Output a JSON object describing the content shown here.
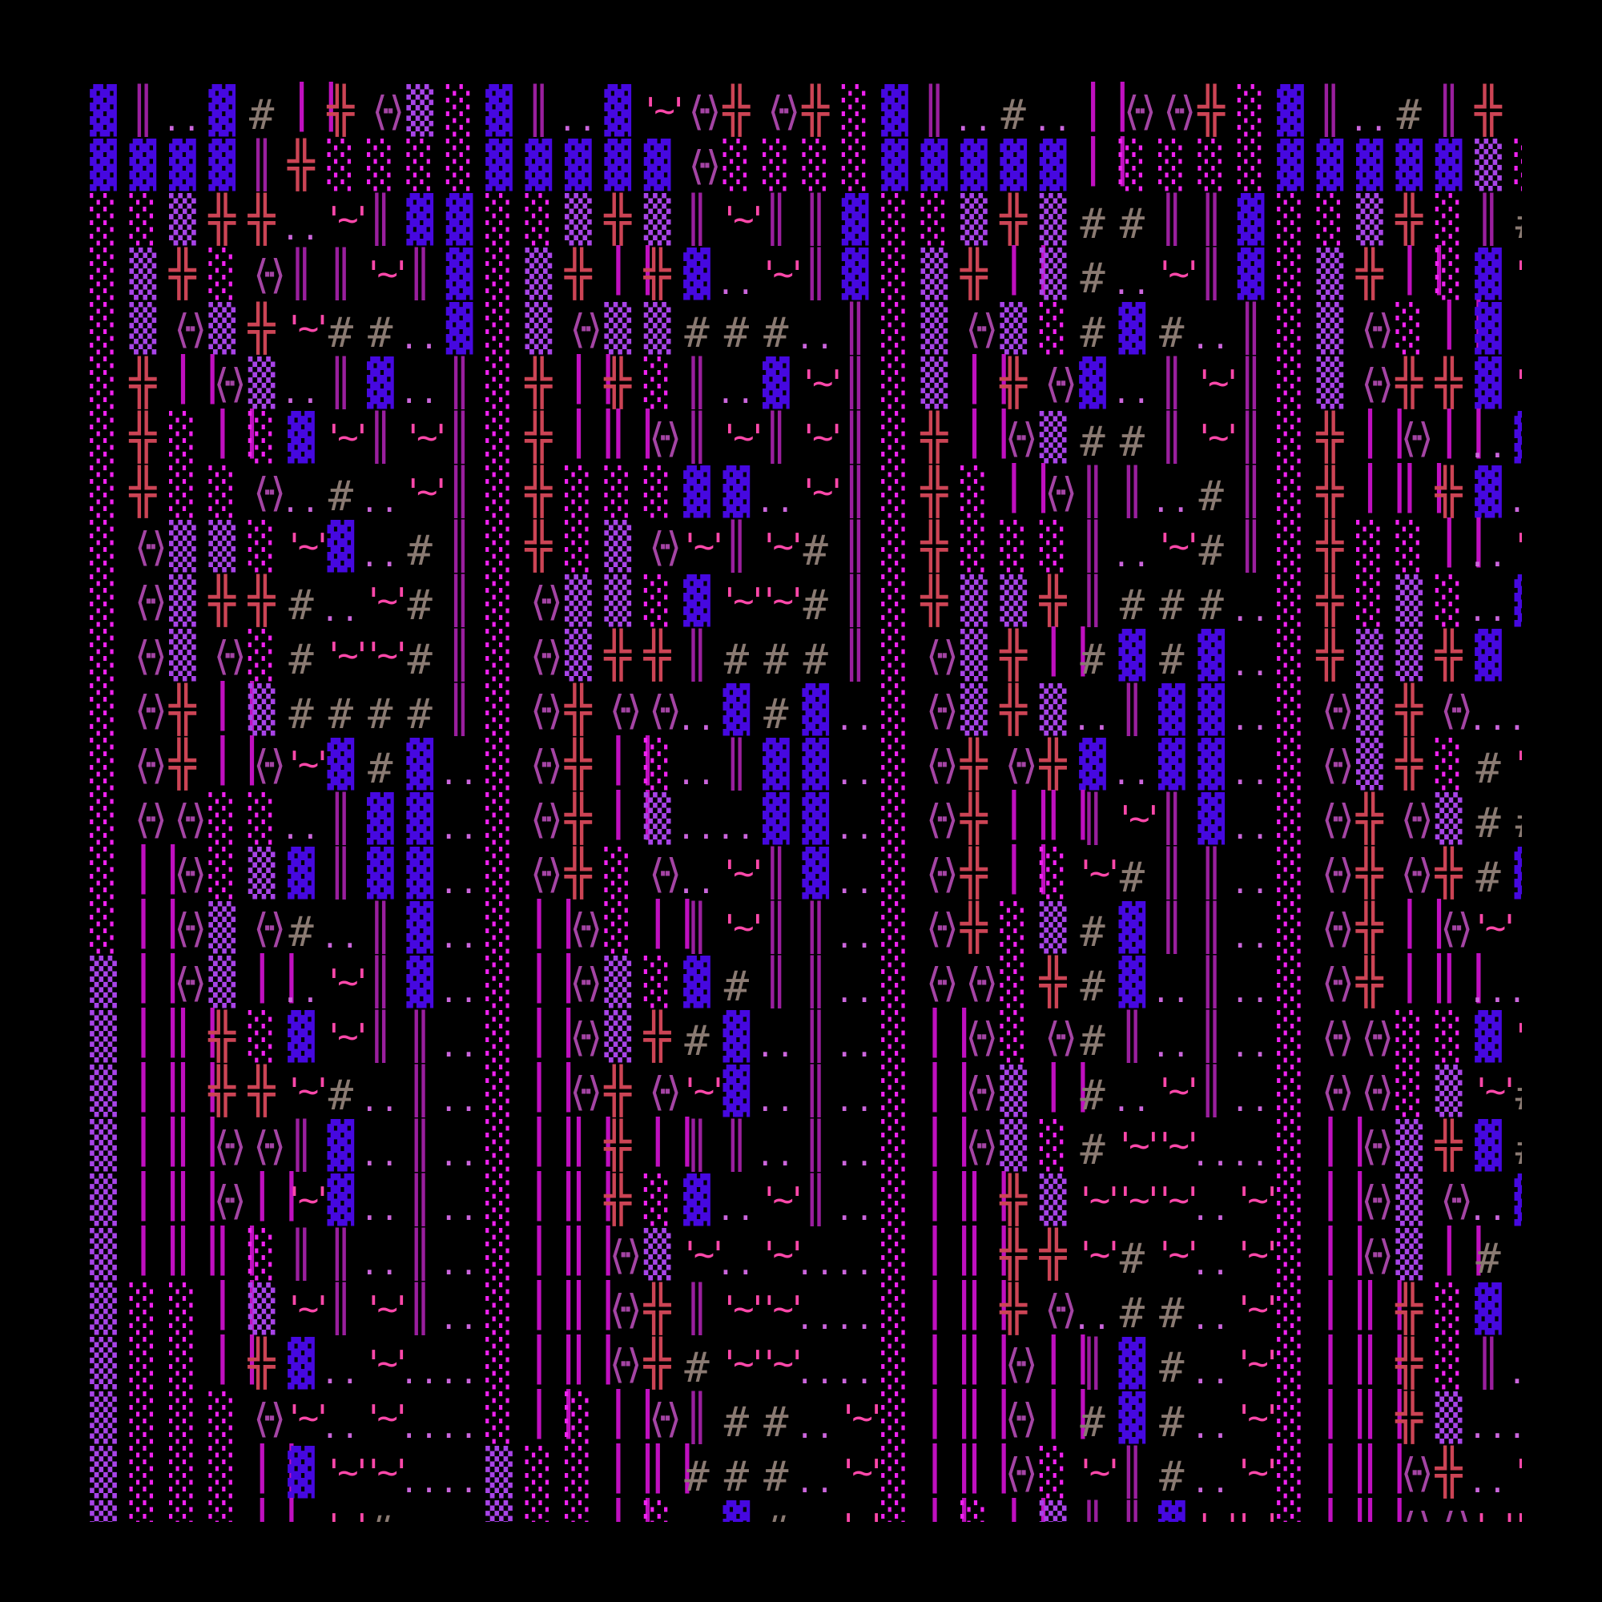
{
  "background": "#000000",
  "palette": {
    "▓": "#4608e0",
    "║": "#9a1f9e",
    "..": "#cc66dd",
    "#": "#8a7a72",
    "| |": "#c010c0",
    "╬": "#cc4455",
    "⟨··⟩": "#a444a4",
    "▒": "#a844e8",
    "░": "#f022f0",
    "'~'": "#ff48aa"
  },
  "rows": [
    [
      "▓",
      "║",
      "..",
      "▓",
      "#",
      "| |",
      "╬",
      "⟨··⟩",
      "▒",
      "░",
      "▓",
      "║",
      "..",
      "▓",
      "'~'",
      "⟨··⟩",
      "╬",
      "⟨··⟩",
      "╬",
      "░",
      "▓",
      "║",
      "..",
      "#",
      "..",
      "| |",
      "⟨··⟩",
      "⟨··⟩",
      "╬",
      "░",
      "▓",
      "║",
      "..",
      "#",
      "║",
      "╬",
      "⟨··⟩"
    ],
    [
      "▓",
      "▓",
      "▓",
      "▓",
      "║",
      "╬",
      "░",
      "░",
      "░",
      "░",
      "▓",
      "▓",
      "▓",
      "▓",
      "▓",
      "⟨··⟩",
      "░",
      "░",
      "░",
      "░",
      "▓",
      "▓",
      "▓",
      "▓",
      "▓",
      "| |",
      "░",
      "░",
      "░",
      "░",
      "▓",
      "▓",
      "▓",
      "▓",
      "▓",
      "▒",
      "░"
    ],
    [
      "░",
      "░",
      "▒",
      "╬",
      "╬",
      "..",
      "'~'",
      "║",
      "▓",
      "▓",
      "░",
      "░",
      "▒",
      "╬",
      "▒",
      "║",
      "'~'",
      "║",
      "║",
      "▓",
      "░",
      "░",
      "▒",
      "╬",
      "▒",
      "#",
      "#",
      "║",
      "║",
      "▓",
      "░",
      "░",
      "▒",
      "╬",
      "░",
      "║",
      "#"
    ],
    [
      "░",
      "▒",
      "╬",
      "░",
      "⟨··⟩",
      "║",
      "║",
      "'~'",
      "║",
      "▓",
      "░",
      "▒",
      "╬",
      "| |",
      "╬",
      "▓",
      "..",
      "'~'",
      "║",
      "▓",
      "░",
      "▒",
      "╬",
      "| |",
      "▒",
      "#",
      "..",
      "'~'",
      "║",
      "▓",
      "░",
      "▒",
      "╬",
      "| |",
      "░",
      "▓",
      "'~'"
    ],
    [
      "░",
      "▒",
      "⟨··⟩",
      "▒",
      "╬",
      "'~'",
      "#",
      "#",
      "..",
      "▓",
      "░",
      "▒",
      "⟨··⟩",
      "▒",
      "▒",
      "#",
      "#",
      "#",
      "..",
      "║",
      "░",
      "▒",
      "⟨··⟩",
      "▒",
      "░",
      "#",
      "▓",
      "#",
      "..",
      "║",
      "░",
      "▒",
      "⟨··⟩",
      "░",
      "| |",
      "▓",
      ""
    ],
    [
      "░",
      "╬",
      "| |",
      "⟨··⟩",
      "▒",
      "..",
      "║",
      "▓",
      "..",
      "║",
      "░",
      "╬",
      "| |",
      "╬",
      "░",
      "║",
      "..",
      "▓",
      "'~'",
      "║",
      "░",
      "▒",
      "| |",
      "╬",
      "⟨··⟩",
      "▓",
      "..",
      "║",
      "'~'",
      "║",
      "░",
      "▒",
      "⟨··⟩",
      "╬",
      "╬",
      "▓",
      "'~'"
    ],
    [
      "░",
      "╬",
      "░",
      "| |",
      "░",
      "▓",
      "'~'",
      "║",
      "'~'",
      "║",
      "░",
      "╬",
      "| |",
      "| |",
      "⟨··⟩",
      "║",
      "'~'",
      "║",
      "'~'",
      "║",
      "░",
      "╬",
      "| |",
      "⟨··⟩",
      "▒",
      "#",
      "#",
      "║",
      "'~'",
      "║",
      "░",
      "╬",
      "| |",
      "⟨··⟩",
      "| |",
      "..",
      "▓"
    ],
    [
      "░",
      "╬",
      "░",
      "░",
      "⟨··⟩",
      "..",
      "#",
      "..",
      "'~'",
      "║",
      "░",
      "╬",
      "░",
      "░",
      "░",
      "▓",
      "▓",
      "..",
      "'~'",
      "║",
      "░",
      "╬",
      "░",
      "| |",
      "⟨··⟩",
      "║",
      "║",
      "..",
      "#",
      "║",
      "░",
      "╬",
      "| |",
      "| |",
      "╬",
      "▓",
      ".."
    ],
    [
      "░",
      "⟨··⟩",
      "▒",
      "▒",
      "░",
      "'~'",
      "▓",
      "..",
      "#",
      "║",
      "░",
      "╬",
      "░",
      "▒",
      "⟨··⟩",
      "'~'",
      "║",
      "'~'",
      "#",
      "║",
      "░",
      "╬",
      "░",
      "░",
      "░",
      "║",
      "..",
      "'~'",
      "#",
      "║",
      "░",
      "╬",
      "░",
      "░",
      "| |",
      "..",
      "'~'"
    ],
    [
      "░",
      "⟨··⟩",
      "▒",
      "╬",
      "╬",
      "#",
      "..",
      "'~'",
      "#",
      "║",
      "░",
      "⟨··⟩",
      "▒",
      "▒",
      "░",
      "▓",
      "'~'",
      "'~'",
      "#",
      "║",
      "░",
      "╬",
      "▒",
      "▒",
      "╬",
      "║",
      "#",
      "#",
      "#",
      "..",
      "░",
      "╬",
      "░",
      "▒",
      "░",
      "..",
      "▓"
    ],
    [
      "░",
      "⟨··⟩",
      "▒",
      "⟨··⟩",
      "░",
      "#",
      "'~'",
      "'~'",
      "#",
      "║",
      "░",
      "⟨··⟩",
      "▒",
      "╬",
      "╬",
      "║",
      "#",
      "#",
      "#",
      "║",
      "░",
      "⟨··⟩",
      "▒",
      "╬",
      "| |",
      "#",
      "▓",
      "#",
      "▓",
      "..",
      "░",
      "╬",
      "▒",
      "▒",
      "╬",
      "▓",
      ""
    ],
    [
      "░",
      "⟨··⟩",
      "╬",
      "| |",
      "▒",
      "#",
      "#",
      "#",
      "#",
      "║",
      "░",
      "⟨··⟩",
      "╬",
      "⟨··⟩",
      "⟨··⟩",
      "..",
      "▓",
      "#",
      "▓",
      "..",
      "░",
      "⟨··⟩",
      "▒",
      "╬",
      "▒",
      "..",
      "║",
      "▓",
      "▓",
      "..",
      "░",
      "⟨··⟩",
      "▒",
      "╬",
      "⟨··⟩",
      "..",
      ".."
    ],
    [
      "░",
      "⟨··⟩",
      "╬",
      "| |",
      "⟨··⟩",
      "'~'",
      "▓",
      "#",
      "▓",
      "..",
      "░",
      "⟨··⟩",
      "╬",
      "| |",
      "░",
      "..",
      "║",
      "▓",
      "▓",
      "..",
      "░",
      "⟨··⟩",
      "╬",
      "⟨··⟩",
      "╬",
      "▓",
      "..",
      "▓",
      "▓",
      "..",
      "░",
      "⟨··⟩",
      "▒",
      "╬",
      "░",
      "#",
      "'~'"
    ],
    [
      "░",
      "⟨··⟩",
      "⟨··⟩",
      "░",
      "░",
      "..",
      "║",
      "▓",
      "▓",
      "..",
      "░",
      "⟨··⟩",
      "╬",
      "| |",
      "▒",
      "..",
      "..",
      "▓",
      "▓",
      "..",
      "░",
      "⟨··⟩",
      "╬",
      "| |",
      "| |",
      "║",
      "'~'",
      "║",
      "▓",
      "..",
      "░",
      "⟨··⟩",
      "╬",
      "⟨··⟩",
      "▒",
      "#",
      "#"
    ],
    [
      "░",
      "| |",
      "⟨··⟩",
      "░",
      "▒",
      "▓",
      "║",
      "▓",
      "▓",
      "..",
      "░",
      "⟨··⟩",
      "╬",
      "░",
      "⟨··⟩",
      "..",
      "'~'",
      "║",
      "▓",
      "..",
      "░",
      "⟨··⟩",
      "╬",
      "| |",
      "░",
      "'~'",
      "#",
      "║",
      "║",
      "..",
      "░",
      "⟨··⟩",
      "╬",
      "⟨··⟩",
      "╬",
      "#",
      "▓"
    ],
    [
      "░",
      "| |",
      "⟨··⟩",
      "▒",
      "⟨··⟩",
      "#",
      "..",
      "║",
      "▓",
      "..",
      "░",
      "| |",
      "⟨··⟩",
      "░",
      "| |",
      "║",
      "'~'",
      "║",
      "║",
      "..",
      "░",
      "⟨··⟩",
      "╬",
      "░",
      "▒",
      "#",
      "▓",
      "║",
      "║",
      "..",
      "░",
      "⟨··⟩",
      "╬",
      "| |",
      "⟨··⟩",
      "'~'",
      ""
    ],
    [
      "▒",
      "| |",
      "⟨··⟩",
      "▒",
      "| |",
      "..",
      "'~'",
      "║",
      "▓",
      "..",
      "░",
      "| |",
      "⟨··⟩",
      "▒",
      "░",
      "▓",
      "#",
      "║",
      "║",
      "..",
      "░",
      "⟨··⟩",
      "⟨··⟩",
      "░",
      "╬",
      "#",
      "▓",
      "..",
      "║",
      "..",
      "░",
      "⟨··⟩",
      "╬",
      "| |",
      "| |",
      "..",
      ".."
    ],
    [
      "▒",
      "| |",
      "| |",
      "╬",
      "░",
      "▓",
      "'~'",
      "║",
      "║",
      "..",
      "░",
      "| |",
      "⟨··⟩",
      "▒",
      "╬",
      "#",
      "▓",
      "..",
      "║",
      "..",
      "░",
      "| |",
      "⟨··⟩",
      "░",
      "⟨··⟩",
      "#",
      "║",
      "..",
      "║",
      "..",
      "░",
      "⟨··⟩",
      "⟨··⟩",
      "░",
      "░",
      "▓",
      "'~'"
    ],
    [
      "▒",
      "| |",
      "| |",
      "╬",
      "╬",
      "'~'",
      "#",
      "..",
      "║",
      "..",
      "░",
      "| |",
      "⟨··⟩",
      "╬",
      "⟨··⟩",
      "'~'",
      "▓",
      "..",
      "║",
      "..",
      "░",
      "| |",
      "⟨··⟩",
      "▒",
      "| |",
      "#",
      "..",
      "'~'",
      "║",
      "..",
      "░",
      "⟨··⟩",
      "⟨··⟩",
      "░",
      "▒",
      "'~'",
      "#"
    ],
    [
      "▒",
      "| |",
      "| |",
      "⟨··⟩",
      "⟨··⟩",
      "║",
      "▓",
      "..",
      "║",
      "..",
      "░",
      "| |",
      "| |",
      "╬",
      "| |",
      "║",
      "║",
      "..",
      "║",
      "..",
      "░",
      "| |",
      "⟨··⟩",
      "▒",
      "░",
      "#",
      "'~'",
      "'~'",
      "..",
      "..",
      "░",
      "| |",
      "⟨··⟩",
      "▒",
      "╬",
      "▓",
      "#"
    ],
    [
      "▒",
      "| |",
      "| |",
      "⟨··⟩",
      "| |",
      "'~'",
      "▓",
      "..",
      "║",
      "..",
      "░",
      "| |",
      "| |",
      "╬",
      "░",
      "▓",
      "..",
      "'~'",
      "║",
      "..",
      "░",
      "| |",
      "| |",
      "╬",
      "▒",
      "'~'",
      "'~'",
      "'~'",
      "..",
      "'~'",
      "░",
      "| |",
      "⟨··⟩",
      "▒",
      "⟨··⟩",
      "..",
      "▓"
    ],
    [
      "▒",
      "| |",
      "| |",
      "| |",
      "░",
      "║",
      "║",
      "..",
      "║",
      "..",
      "░",
      "| |",
      "| |",
      "⟨··⟩",
      "▒",
      "'~'",
      "..",
      "'~'",
      "..",
      "..",
      "░",
      "| |",
      "| |",
      "╬",
      "╬",
      "'~'",
      "#",
      "'~'",
      "..",
      "'~'",
      "░",
      "| |",
      "⟨··⟩",
      "▒",
      "| |",
      "#",
      ""
    ],
    [
      "▒",
      "░",
      "░",
      "| |",
      "▒",
      "'~'",
      "║",
      "'~'",
      "║",
      "..",
      "░",
      "| |",
      "| |",
      "⟨··⟩",
      "╬",
      "║",
      "'~'",
      "'~'",
      "..",
      "..",
      "░",
      "| |",
      "| |",
      "╬",
      "⟨··⟩",
      "..",
      "#",
      "#",
      "..",
      "'~'",
      "░",
      "| |",
      "| |",
      "╬",
      "░",
      "▓",
      ""
    ],
    [
      "▒",
      "░",
      "░",
      "| |",
      "╬",
      "▓",
      "..",
      "'~'",
      "..",
      "..",
      "░",
      "| |",
      "| |",
      "⟨··⟩",
      "╬",
      "#",
      "'~'",
      "'~'",
      "..",
      "..",
      "░",
      "| |",
      "| |",
      "⟨··⟩",
      "| |",
      "║",
      "▓",
      "#",
      "..",
      "'~'",
      "░",
      "| |",
      "| |",
      "╬",
      "░",
      "║",
      ".."
    ],
    [
      "▒",
      "░",
      "░",
      "░",
      "⟨··⟩",
      "'~'",
      "..",
      "'~'",
      "..",
      "..",
      "░",
      "| |",
      "░",
      "| |",
      "⟨··⟩",
      "║",
      "#",
      "#",
      "..",
      "'~'",
      "░",
      "| |",
      "| |",
      "⟨··⟩",
      "| |",
      "#",
      "▓",
      "#",
      "..",
      "'~'",
      "░",
      "| |",
      "| |",
      "╬",
      "▒",
      "..",
      ".."
    ],
    [
      "▒",
      "░",
      "░",
      "░",
      "| |",
      "▓",
      "'~'",
      "'~'",
      "..",
      "..",
      "▒",
      "░",
      "░",
      "| |",
      "| |",
      "#",
      "#",
      "#",
      "..",
      "'~'",
      "░",
      "| |",
      "| |",
      "⟨··⟩",
      "░",
      "'~'",
      "║",
      "#",
      "..",
      "'~'",
      "░",
      "| |",
      "| |",
      "⟨··⟩",
      "╬",
      "..",
      "'~'"
    ],
    [
      "▒",
      "░",
      "░",
      "░",
      "| |",
      "",
      "'~'",
      "#",
      "",
      "",
      "▒",
      "░",
      "░",
      "| |",
      "░",
      "",
      "▓",
      "#",
      "",
      "'~'",
      "░",
      "| |",
      "░",
      "| |",
      "▒",
      "║",
      "║",
      "▓",
      "'~'",
      "'~'",
      "░",
      "| |",
      "| |",
      "⟨··⟩",
      "⟨··⟩",
      "'~'",
      "'~'"
    ]
  ]
}
